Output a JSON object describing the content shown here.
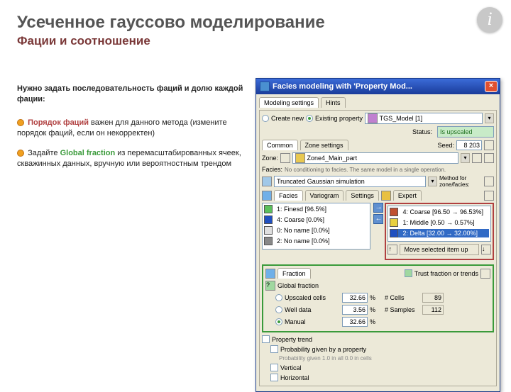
{
  "title": "Усеченное гауссово моделирование",
  "subtitle": "Фации и соотношение",
  "info_glyph": "i",
  "intro": "Нужно задать последовательность фаций и долю каждой фации:",
  "bullet1_kw": "Порядок фаций",
  "bullet1_rest": " важен для данного метода (измените порядок фаций, если он некорректен)",
  "bullet2_pre": "Задайте ",
  "bullet2_kw": "Global fraction",
  "bullet2_rest": " из перемасштабированных ячеек, скважинных данных, вручную или вероятностным трендом",
  "win": {
    "title": "Facies modeling with 'Property Mod...",
    "close": "×",
    "tab_settings": "Modeling settings",
    "tab_hints": "Hints",
    "create_new": "Create new",
    "existing_prop": "Existing property",
    "prop_name": "TGS_Model [1]",
    "status": "Is upscaled",
    "subtab1": "Common",
    "subtab2": "Zone settings",
    "seed_label": "Seed:",
    "seed_val": "8 203",
    "zone_label": "Zone:",
    "zone_val": "Zone4_Main_part",
    "facies_label": "Facies:",
    "facies_method": "No conditioning to facies. The same model in a single operation.",
    "method_val": "Truncated Gaussian simulation",
    "method_lab": "Method for zone/facies:",
    "panel_tabs": [
      "Facies",
      "Variogram",
      "Settings",
      "Expert"
    ],
    "left_items": [
      {
        "color": "#5bc05b",
        "label": "1: Finesd [96.5%]"
      },
      {
        "color": "#2050c0",
        "label": "4: Coarse [0.0%]"
      },
      {
        "color": "#e0e0e0",
        "label": "0: No name [0.0%]"
      },
      {
        "color": "#888888",
        "label": "2: No name [0.0%]"
      }
    ],
    "right_items": [
      {
        "color": "#c05030",
        "label": "4: Coarse [96.50 → 96.53%]"
      },
      {
        "color": "#e8d040",
        "label": "1: Middle [0.50 → 0.57%]"
      },
      {
        "color": "#2050c0",
        "label": "2: Delta [32.00 → 32.00%]"
      }
    ],
    "move_btn": "Move selected item up",
    "fraction_tab": "Fraction",
    "trust_check": "Trust fraction or trends",
    "global_label": "Global fraction",
    "rows": [
      {
        "radio": false,
        "label": "Upscaled cells",
        "val": "32.66",
        "pct": "%",
        "r": "# Cells",
        "rv": "89"
      },
      {
        "radio": false,
        "label": "Well data",
        "val": "3.56",
        "pct": "%",
        "r": "# Samples",
        "rv": "112"
      },
      {
        "radio": true,
        "label": "Manual",
        "val": "32.66",
        "pct": "%",
        "r": "",
        "rv": ""
      }
    ],
    "prop_trend": "Property trend",
    "prob_check": "Probability given by a property",
    "prob_sub": "Probability given 1.0 in all 0.0 in cells",
    "vert": "Vertical",
    "horiz": "Horizontal"
  }
}
